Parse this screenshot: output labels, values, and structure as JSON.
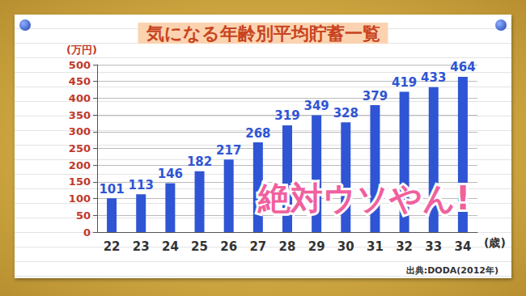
{
  "chart_data": {
    "type": "bar",
    "title": "気になる年齢別平均貯蓄一覧",
    "y_label": "(万円)",
    "x_label": "(歳)",
    "categories": [
      "22",
      "23",
      "24",
      "25",
      "26",
      "27",
      "28",
      "29",
      "30",
      "31",
      "32",
      "33",
      "34"
    ],
    "values": [
      101,
      113,
      146,
      182,
      217,
      268,
      319,
      349,
      328,
      379,
      419,
      433,
      464
    ],
    "color": "#2f55d4",
    "ylim": [
      0,
      500
    ],
    "yticks": [
      0,
      50,
      100,
      150,
      200,
      250,
      300,
      350,
      400,
      450,
      500
    ],
    "grid": true,
    "data_labels": true,
    "annotations": [
      "絶対ウソやん!"
    ],
    "source": "出典:DODA(2012年)"
  }
}
